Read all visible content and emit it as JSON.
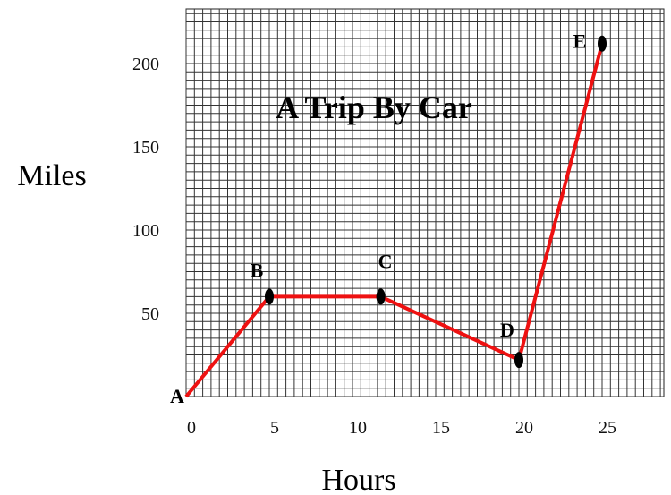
{
  "chart_data": {
    "type": "line",
    "title": "A Trip By Car",
    "xlabel": "Hours",
    "ylabel": "Miles",
    "xlim": [
      0,
      26.5
    ],
    "ylim": [
      0,
      220
    ],
    "x_ticks": [
      0,
      5,
      10,
      15,
      20,
      25
    ],
    "y_ticks": [
      50,
      100,
      150,
      200
    ],
    "grid": true,
    "line_color": "#ee1111",
    "series": [
      {
        "points": [
          {
            "label": "A",
            "x": 0,
            "y": 0
          },
          {
            "label": "B",
            "x": 5,
            "y": 60
          },
          {
            "label": "C",
            "x": 11.7,
            "y": 60
          },
          {
            "label": "D",
            "x": 20,
            "y": 22
          },
          {
            "label": "E",
            "x": 25,
            "y": 212
          }
        ]
      }
    ]
  }
}
